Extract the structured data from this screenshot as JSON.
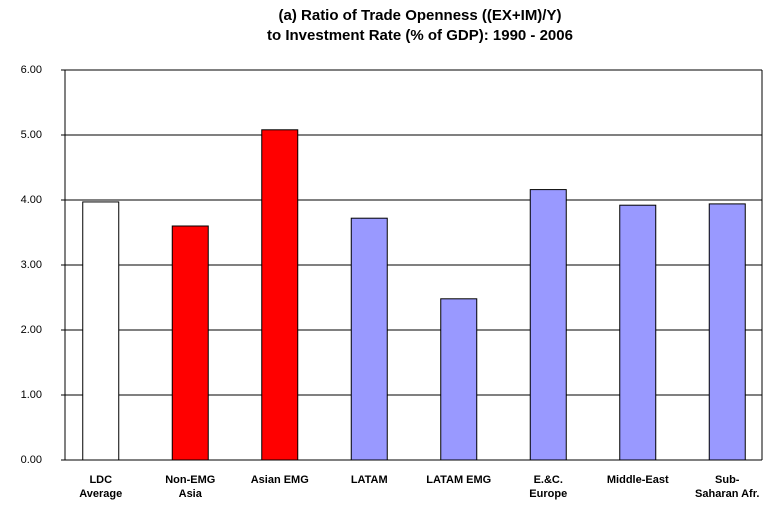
{
  "chart_data": {
    "type": "bar",
    "title": [
      "(a) Ratio of Trade Openness ((EX+IM)/Y)",
      "to Investment Rate (% of GDP): 1990 - 2006"
    ],
    "categories": [
      [
        "LDC",
        "Average"
      ],
      [
        "Non-EMG",
        "Asia"
      ],
      [
        "Asian EMG"
      ],
      [
        "LATAM"
      ],
      [
        "LATAM EMG"
      ],
      [
        "E.&C.",
        "Europe"
      ],
      [
        "Middle-East"
      ],
      [
        "Sub-",
        "Saharan Afr."
      ]
    ],
    "values": [
      3.97,
      3.6,
      5.08,
      3.72,
      2.48,
      4.16,
      3.92,
      3.94
    ],
    "colors": [
      "#ffffff",
      "#ff0000",
      "#ff0000",
      "#9999ff",
      "#9999ff",
      "#9999ff",
      "#9999ff",
      "#9999ff"
    ],
    "ylim": [
      0,
      6
    ],
    "yticks": [
      {
        "value": 0,
        "label": "0.00"
      },
      {
        "value": 1,
        "label": "1.00"
      },
      {
        "value": 2,
        "label": "2.00"
      },
      {
        "value": 3,
        "label": "3.00"
      },
      {
        "value": 4,
        "label": "4.00"
      },
      {
        "value": 5,
        "label": "5.00"
      },
      {
        "value": 6,
        "label": "6.00"
      }
    ],
    "grid": true
  }
}
